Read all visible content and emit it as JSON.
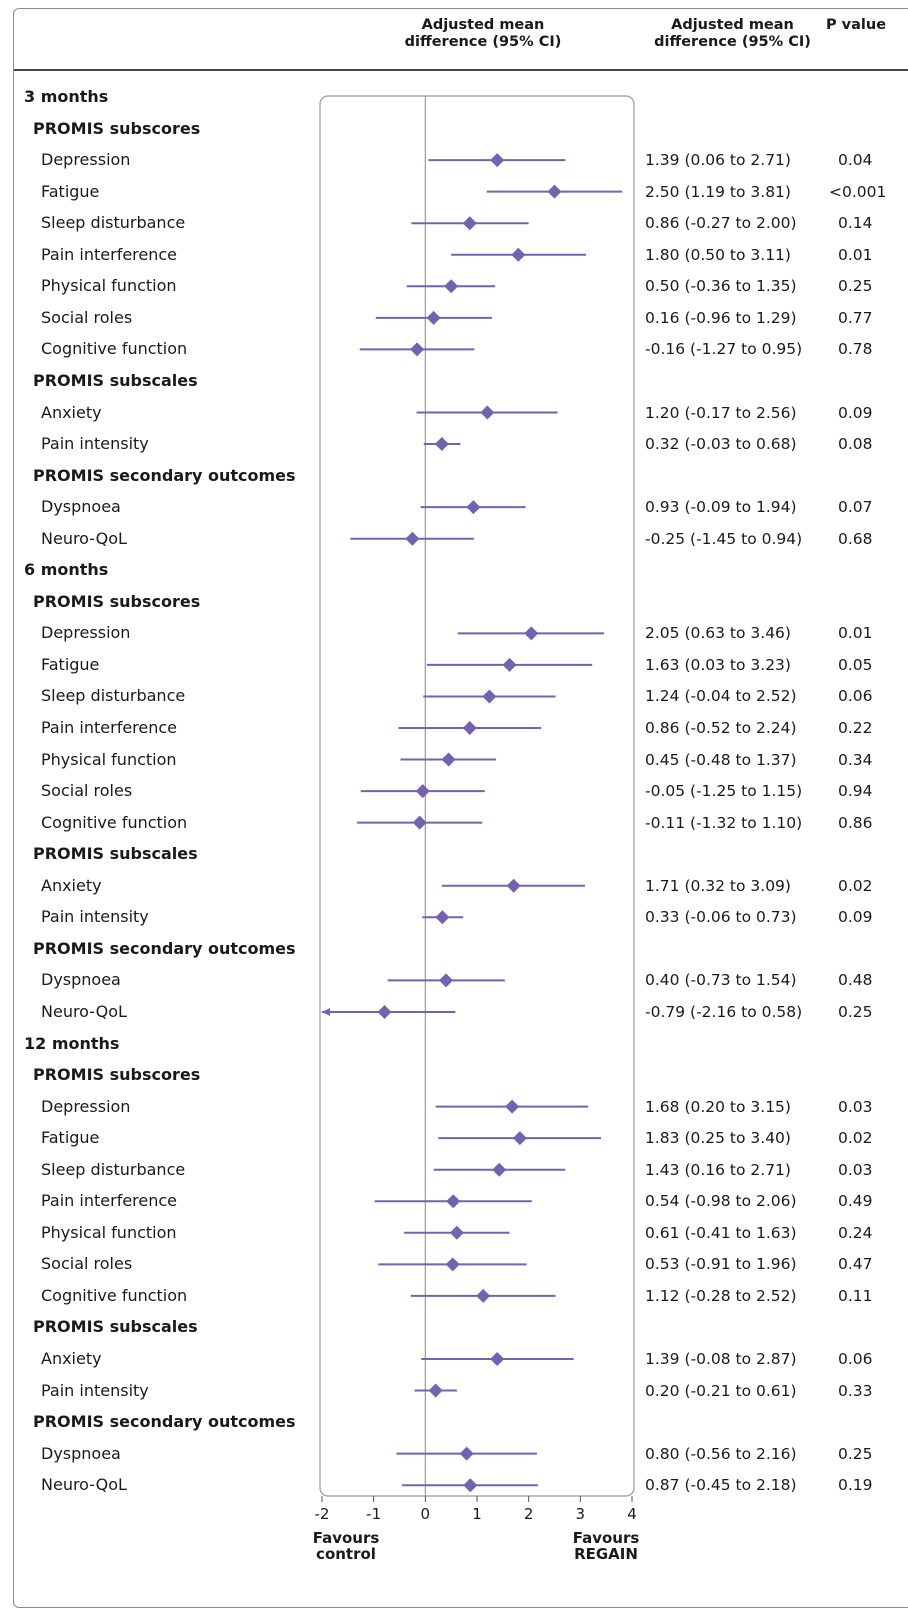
{
  "header": {
    "col_plot": "Adjusted mean difference (95% CI)",
    "col_ci": "Adjusted mean difference (95% CI)",
    "col_p": "P value"
  },
  "footer": {
    "favours_left": "Favours control",
    "favours_right": "Favours REGAIN"
  },
  "colors": {
    "marker": "#7462b0",
    "axis": "#9a9a9a",
    "panel_border": "#9a9a9a"
  },
  "chart_data": {
    "type": "forest",
    "xlim": [
      -2,
      4
    ],
    "ticks": [
      -2,
      -1,
      0,
      1,
      2,
      3,
      4
    ],
    "reference_line": 0,
    "rows": [
      {
        "kind": "section",
        "label": "3 months"
      },
      {
        "kind": "group",
        "label": "PROMIS subscores"
      },
      {
        "kind": "item",
        "label": "Depression",
        "est": 1.39,
        "lo": 0.06,
        "hi": 2.71,
        "ci": "1.39 (0.06 to 2.71)",
        "p": "0.04"
      },
      {
        "kind": "item",
        "label": "Fatigue",
        "est": 2.5,
        "lo": 1.19,
        "hi": 3.81,
        "ci": "2.50 (1.19 to 3.81)",
        "p": "<0.001"
      },
      {
        "kind": "item",
        "label": "Sleep disturbance",
        "est": 0.86,
        "lo": -0.27,
        "hi": 2.0,
        "ci": "0.86 (-0.27 to 2.00)",
        "p": "0.14"
      },
      {
        "kind": "item",
        "label": "Pain interference",
        "est": 1.8,
        "lo": 0.5,
        "hi": 3.11,
        "ci": "1.80 (0.50 to 3.11)",
        "p": "0.01"
      },
      {
        "kind": "item",
        "label": "Physical function",
        "est": 0.5,
        "lo": -0.36,
        "hi": 1.35,
        "ci": "0.50 (-0.36 to 1.35)",
        "p": "0.25"
      },
      {
        "kind": "item",
        "label": "Social roles",
        "est": 0.16,
        "lo": -0.96,
        "hi": 1.29,
        "ci": "0.16 (-0.96 to 1.29)",
        "p": "0.77"
      },
      {
        "kind": "item",
        "label": "Cognitive function",
        "est": -0.16,
        "lo": -1.27,
        "hi": 0.95,
        "ci": "-0.16 (-1.27 to 0.95)",
        "p": "0.78"
      },
      {
        "kind": "group",
        "label": "PROMIS subscales"
      },
      {
        "kind": "item",
        "label": "Anxiety",
        "est": 1.2,
        "lo": -0.17,
        "hi": 2.56,
        "ci": "1.20 (-0.17 to 2.56)",
        "p": "0.09"
      },
      {
        "kind": "item",
        "label": "Pain intensity",
        "est": 0.32,
        "lo": -0.03,
        "hi": 0.68,
        "ci": "0.32 (-0.03 to 0.68)",
        "p": "0.08"
      },
      {
        "kind": "group",
        "label": "PROMIS secondary outcomes"
      },
      {
        "kind": "item",
        "label": "Dyspnoea",
        "est": 0.93,
        "lo": -0.09,
        "hi": 1.94,
        "ci": "0.93 (-0.09 to 1.94)",
        "p": "0.07"
      },
      {
        "kind": "item",
        "label": "Neuro-QoL",
        "est": -0.25,
        "lo": -1.45,
        "hi": 0.94,
        "ci": "-0.25 (-1.45 to 0.94)",
        "p": "0.68"
      },
      {
        "kind": "section",
        "label": "6 months"
      },
      {
        "kind": "group",
        "label": "PROMIS subscores"
      },
      {
        "kind": "item",
        "label": "Depression",
        "est": 2.05,
        "lo": 0.63,
        "hi": 3.46,
        "ci": "2.05 (0.63 to 3.46)",
        "p": "0.01"
      },
      {
        "kind": "item",
        "label": "Fatigue",
        "est": 1.63,
        "lo": 0.03,
        "hi": 3.23,
        "ci": "1.63 (0.03 to 3.23)",
        "p": "0.05"
      },
      {
        "kind": "item",
        "label": "Sleep disturbance",
        "est": 1.24,
        "lo": -0.04,
        "hi": 2.52,
        "ci": "1.24 (-0.04 to 2.52)",
        "p": "0.06"
      },
      {
        "kind": "item",
        "label": "Pain interference",
        "est": 0.86,
        "lo": -0.52,
        "hi": 2.24,
        "ci": "0.86 (-0.52 to 2.24)",
        "p": "0.22"
      },
      {
        "kind": "item",
        "label": "Physical function",
        "est": 0.45,
        "lo": -0.48,
        "hi": 1.37,
        "ci": "0.45 (-0.48 to 1.37)",
        "p": "0.34"
      },
      {
        "kind": "item",
        "label": "Social roles",
        "est": -0.05,
        "lo": -1.25,
        "hi": 1.15,
        "ci": "-0.05 (-1.25 to 1.15)",
        "p": "0.94"
      },
      {
        "kind": "item",
        "label": "Cognitive function",
        "est": -0.11,
        "lo": -1.32,
        "hi": 1.1,
        "ci": "-0.11 (-1.32 to 1.10)",
        "p": "0.86"
      },
      {
        "kind": "group",
        "label": "PROMIS subscales"
      },
      {
        "kind": "item",
        "label": "Anxiety",
        "est": 1.71,
        "lo": 0.32,
        "hi": 3.09,
        "ci": "1.71 (0.32 to 3.09)",
        "p": "0.02"
      },
      {
        "kind": "item",
        "label": "Pain intensity",
        "est": 0.33,
        "lo": -0.06,
        "hi": 0.73,
        "ci": "0.33 (-0.06 to 0.73)",
        "p": "0.09"
      },
      {
        "kind": "group",
        "label": "PROMIS secondary outcomes"
      },
      {
        "kind": "item",
        "label": "Dyspnoea",
        "est": 0.4,
        "lo": -0.73,
        "hi": 1.54,
        "ci": "0.40 (-0.73 to 1.54)",
        "p": "0.48"
      },
      {
        "kind": "item",
        "label": "Neuro-QoL",
        "est": -0.79,
        "lo": -2.16,
        "hi": 0.58,
        "ci": "-0.79 (-2.16 to 0.58)",
        "p": "0.25"
      },
      {
        "kind": "section",
        "label": "12 months"
      },
      {
        "kind": "group",
        "label": "PROMIS subscores"
      },
      {
        "kind": "item",
        "label": "Depression",
        "est": 1.68,
        "lo": 0.2,
        "hi": 3.15,
        "ci": "1.68 (0.20 to 3.15)",
        "p": "0.03"
      },
      {
        "kind": "item",
        "label": "Fatigue",
        "est": 1.83,
        "lo": 0.25,
        "hi": 3.4,
        "ci": "1.83 (0.25 to 3.40)",
        "p": "0.02"
      },
      {
        "kind": "item",
        "label": "Sleep disturbance",
        "est": 1.43,
        "lo": 0.16,
        "hi": 2.71,
        "ci": "1.43 (0.16 to 2.71)",
        "p": "0.03"
      },
      {
        "kind": "item",
        "label": "Pain interference",
        "est": 0.54,
        "lo": -0.98,
        "hi": 2.06,
        "ci": "0.54 (-0.98 to 2.06)",
        "p": "0.49"
      },
      {
        "kind": "item",
        "label": "Physical function",
        "est": 0.61,
        "lo": -0.41,
        "hi": 1.63,
        "ci": "0.61 (-0.41 to 1.63)",
        "p": "0.24"
      },
      {
        "kind": "item",
        "label": "Social roles",
        "est": 0.53,
        "lo": -0.91,
        "hi": 1.96,
        "ci": "0.53 (-0.91 to 1.96)",
        "p": "0.47"
      },
      {
        "kind": "item",
        "label": "Cognitive function",
        "est": 1.12,
        "lo": -0.28,
        "hi": 2.52,
        "ci": "1.12 (-0.28 to 2.52)",
        "p": "0.11"
      },
      {
        "kind": "group",
        "label": "PROMIS subscales"
      },
      {
        "kind": "item",
        "label": "Anxiety",
        "est": 1.39,
        "lo": -0.08,
        "hi": 2.87,
        "ci": "1.39 (-0.08 to 2.87)",
        "p": "0.06"
      },
      {
        "kind": "item",
        "label": "Pain intensity",
        "est": 0.2,
        "lo": -0.21,
        "hi": 0.61,
        "ci": "0.20 (-0.21 to 0.61)",
        "p": "0.33"
      },
      {
        "kind": "group",
        "label": "PROMIS secondary outcomes"
      },
      {
        "kind": "item",
        "label": "Dyspnoea",
        "est": 0.8,
        "lo": -0.56,
        "hi": 2.16,
        "ci": "0.80 (-0.56 to 2.16)",
        "p": "0.25"
      },
      {
        "kind": "item",
        "label": "Neuro-QoL",
        "est": 0.87,
        "lo": -0.45,
        "hi": 2.18,
        "ci": "0.87 (-0.45 to 2.18)",
        "p": "0.19"
      }
    ]
  }
}
